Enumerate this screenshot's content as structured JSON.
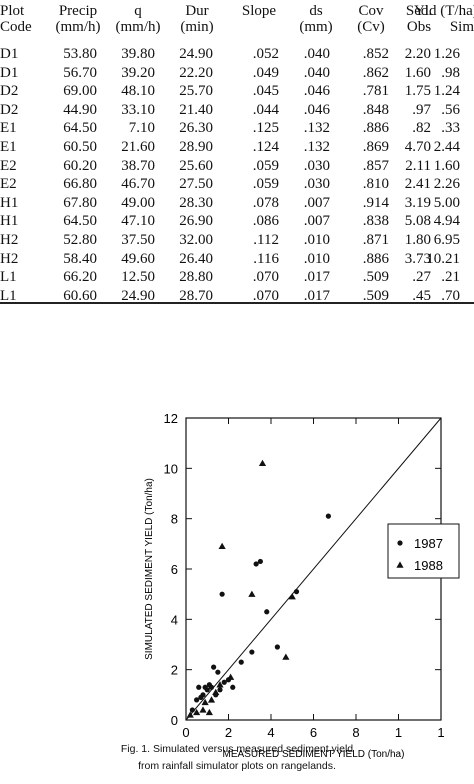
{
  "table": {
    "headers": [
      {
        "l1": "Plot",
        "l2": "Code"
      },
      {
        "l1": "Precip",
        "l2": "(mm/h)"
      },
      {
        "l1": "q",
        "l2": "(mm/h)"
      },
      {
        "l1": "Dur",
        "l2": "(min)"
      },
      {
        "l1": "Slope",
        "l2": ""
      },
      {
        "l1": "ds",
        "l2": "(mm)"
      },
      {
        "l1": "Cov",
        "l2": "(Cv)"
      },
      {
        "l1": "Sed.",
        "l2": "Obs"
      },
      {
        "l1": "Yld (T/ha)",
        "l2": "Sim"
      }
    ],
    "rows": [
      [
        "D1",
        "53.80",
        "39.80",
        "24.90",
        ".052",
        ".040",
        ".852",
        "2.20",
        "1.26"
      ],
      [
        "D1",
        "56.70",
        "39.20",
        "22.20",
        ".049",
        ".040",
        ".862",
        "1.60",
        ".98"
      ],
      [
        "D2",
        "69.00",
        "48.10",
        "25.70",
        ".045",
        ".046",
        ".781",
        "1.75",
        "1.24"
      ],
      [
        "D2",
        "44.90",
        "33.10",
        "21.40",
        ".044",
        ".046",
        ".848",
        ".97",
        ".56"
      ],
      [
        "E1",
        "64.50",
        "7.10",
        "26.30",
        ".125",
        ".132",
        ".886",
        ".82",
        ".33"
      ],
      [
        "E1",
        "60.50",
        "21.60",
        "28.90",
        ".124",
        ".132",
        ".869",
        "4.70",
        "2.44"
      ],
      [
        "E2",
        "60.20",
        "38.70",
        "25.60",
        ".059",
        ".030",
        ".857",
        "2.11",
        "1.60"
      ],
      [
        "E2",
        "66.80",
        "46.70",
        "27.50",
        ".059",
        ".030",
        ".810",
        "2.41",
        "2.26"
      ],
      [
        "H1",
        "67.80",
        "49.00",
        "28.30",
        ".078",
        ".007",
        ".914",
        "3.19",
        "5.00"
      ],
      [
        "H1",
        "64.50",
        "47.10",
        "26.90",
        ".086",
        ".007",
        ".838",
        "5.08",
        "4.94"
      ],
      [
        "H2",
        "52.80",
        "37.50",
        "32.00",
        ".112",
        ".010",
        ".871",
        "1.80",
        "6.95"
      ],
      [
        "H2",
        "58.40",
        "49.60",
        "26.40",
        ".116",
        ".010",
        ".886",
        "3.73",
        "10.21"
      ],
      [
        "L1",
        "66.20",
        "12.50",
        "28.80",
        ".070",
        ".017",
        ".509",
        ".27",
        ".21"
      ],
      [
        "L1",
        "60.60",
        "24.90",
        "28.70",
        ".070",
        ".017",
        ".509",
        ".45",
        ".70"
      ]
    ]
  },
  "chart_data": {
    "type": "scatter",
    "xlabel": "MEASURED SEDIMENT YIELD (Ton/ha)",
    "ylabel": "SIMULATED SEDIMENT YIELD (Ton/ha)",
    "xlim": [
      0,
      12
    ],
    "ylim": [
      0,
      12
    ],
    "x_ticks": [
      "0",
      "2",
      "4",
      "6",
      "8",
      "10",
      "12"
    ],
    "x_tick_labels": [
      "0",
      "2",
      "4",
      "6",
      "8",
      "1",
      "1"
    ],
    "y_ticks": [
      "0",
      "2",
      "4",
      "6",
      "8",
      "10",
      "12"
    ],
    "reference_line": "1:1",
    "legend_position": "right",
    "series": [
      {
        "name": "1987",
        "marker": "circle",
        "points": [
          [
            0.3,
            0.4
          ],
          [
            0.5,
            0.8
          ],
          [
            0.6,
            1.3
          ],
          [
            0.7,
            0.9
          ],
          [
            0.8,
            1.0
          ],
          [
            0.9,
            1.3
          ],
          [
            1.0,
            1.2
          ],
          [
            1.1,
            1.4
          ],
          [
            1.2,
            1.3
          ],
          [
            1.3,
            2.1
          ],
          [
            1.4,
            1.0
          ],
          [
            1.5,
            1.9
          ],
          [
            1.6,
            1.2
          ],
          [
            1.7,
            5.0
          ],
          [
            2.2,
            1.3
          ],
          [
            2.6,
            2.3
          ],
          [
            3.1,
            2.7
          ],
          [
            3.3,
            6.2
          ],
          [
            3.5,
            6.3
          ],
          [
            3.8,
            4.3
          ],
          [
            4.3,
            2.9
          ],
          [
            5.2,
            5.1
          ],
          [
            6.7,
            8.1
          ],
          [
            2.0,
            1.6
          ],
          [
            1.8,
            1.5
          ]
        ]
      },
      {
        "name": "1988",
        "marker": "triangle",
        "points": [
          [
            0.2,
            0.2
          ],
          [
            0.5,
            0.3
          ],
          [
            0.8,
            0.4
          ],
          [
            0.9,
            0.7
          ],
          [
            1.1,
            0.3
          ],
          [
            1.2,
            0.8
          ],
          [
            1.4,
            1.1
          ],
          [
            1.6,
            1.4
          ],
          [
            1.7,
            6.9
          ],
          [
            2.1,
            1.7
          ],
          [
            3.1,
            5.0
          ],
          [
            3.6,
            10.2
          ],
          [
            4.7,
            2.5
          ],
          [
            5.0,
            4.9
          ]
        ]
      }
    ]
  },
  "figure": {
    "caption_line1": "Fig. 1. Simulated versus measured  sediment yield",
    "caption_line2": "from rainfall simulator plots on rangelands."
  }
}
